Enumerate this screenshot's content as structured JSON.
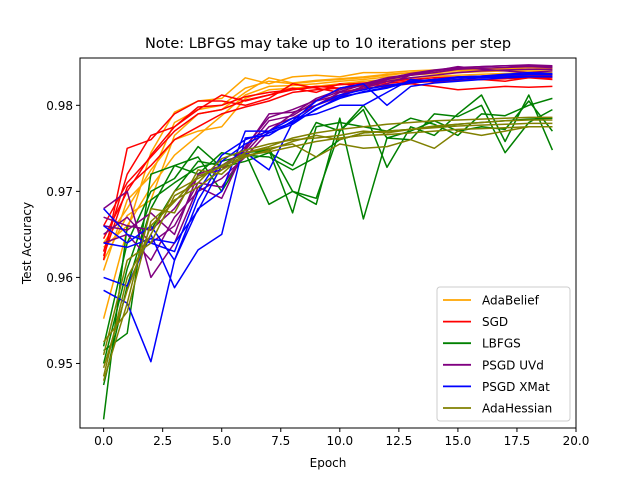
{
  "chart_data": {
    "type": "line",
    "title": "Note: LBFGS may take up to 10 iterations per step",
    "xlabel": "Epoch",
    "ylabel": "Test Accuracy",
    "xlim": [
      -1,
      20
    ],
    "ylim": [
      0.9425,
      0.9855
    ],
    "xticks": [
      0,
      2.5,
      5,
      7.5,
      10,
      12.5,
      15,
      17.5,
      20
    ],
    "xtick_labels": [
      "0.0",
      "2.5",
      "5.0",
      "7.5",
      "10.0",
      "12.5",
      "15.0",
      "17.5",
      "20.0"
    ],
    "yticks": [
      0.95,
      0.96,
      0.97,
      0.98
    ],
    "ytick_labels": [
      "0.95",
      "0.96",
      "0.97",
      "0.98"
    ],
    "grid": false,
    "legend_position": "lower-right",
    "x": [
      0,
      1,
      2,
      3,
      4,
      5,
      6,
      7,
      8,
      9,
      10,
      11,
      12,
      13,
      14,
      15,
      16,
      17,
      18,
      19
    ],
    "series": [
      {
        "name": "AdaBelief",
        "color": "#ffa500",
        "runs": [
          [
            0.9552,
            0.9655,
            0.9745,
            0.9792,
            0.9805,
            0.9808,
            0.9832,
            0.9825,
            0.9833,
            0.9835,
            0.9833,
            0.9838,
            0.9838,
            0.984,
            0.9841,
            0.9842,
            0.9843,
            0.9843,
            0.9844,
            0.9843
          ],
          [
            0.9608,
            0.969,
            0.9718,
            0.978,
            0.9795,
            0.98,
            0.982,
            0.9828,
            0.9825,
            0.9828,
            0.983,
            0.9832,
            0.9835,
            0.9838,
            0.9839,
            0.984,
            0.9841,
            0.9842,
            0.9842,
            0.9842
          ],
          [
            0.9635,
            0.966,
            0.9705,
            0.9742,
            0.9765,
            0.9788,
            0.9812,
            0.9822,
            0.9823,
            0.9825,
            0.9828,
            0.983,
            0.9833,
            0.9835,
            0.9837,
            0.9838,
            0.9839,
            0.984,
            0.984,
            0.984
          ],
          [
            0.962,
            0.9672,
            0.969,
            0.9765,
            0.979,
            0.9795,
            0.9815,
            0.9832,
            0.9826,
            0.9829,
            0.9831,
            0.9833,
            0.9836,
            0.9838,
            0.984,
            0.9841,
            0.9842,
            0.9843,
            0.9845,
            0.9844
          ],
          [
            0.964,
            0.968,
            0.9725,
            0.976,
            0.977,
            0.9775,
            0.9808,
            0.9818,
            0.982,
            0.9822,
            0.9825,
            0.9828,
            0.983,
            0.9832,
            0.9834,
            0.9835,
            0.9836,
            0.9837,
            0.9838,
            0.9838
          ]
        ]
      },
      {
        "name": "SGD",
        "color": "#ff0000",
        "runs": [
          [
            0.962,
            0.975,
            0.976,
            0.979,
            0.9805,
            0.9805,
            0.98,
            0.9808,
            0.9825,
            0.982,
            0.9815,
            0.982,
            0.9822,
            0.9825,
            0.9822,
            0.9818,
            0.982,
            0.9822,
            0.9821,
            0.9822
          ],
          [
            0.963,
            0.972,
            0.9765,
            0.9775,
            0.9795,
            0.9812,
            0.9805,
            0.9812,
            0.982,
            0.9815,
            0.9825,
            0.9822,
            0.9828,
            0.983,
            0.9827,
            0.9829,
            0.983,
            0.9828,
            0.9832,
            0.983
          ],
          [
            0.9645,
            0.97,
            0.9742,
            0.9775,
            0.9798,
            0.98,
            0.981,
            0.9815,
            0.9818,
            0.9822,
            0.982,
            0.9825,
            0.9826,
            0.9828,
            0.983,
            0.9832,
            0.9833,
            0.9834,
            0.9835,
            0.9835
          ],
          [
            0.9625,
            0.9705,
            0.973,
            0.976,
            0.9775,
            0.979,
            0.9798,
            0.9805,
            0.9815,
            0.9818,
            0.982,
            0.9823,
            0.9824,
            0.9826,
            0.9828,
            0.983,
            0.983,
            0.9831,
            0.9832,
            0.9832
          ],
          [
            0.966,
            0.971,
            0.974,
            0.977,
            0.979,
            0.9795,
            0.9806,
            0.9812,
            0.9818,
            0.9821,
            0.9824,
            0.9826,
            0.9828,
            0.983,
            0.9832,
            0.9833,
            0.9834,
            0.9835,
            0.9836,
            0.9836
          ]
        ]
      },
      {
        "name": "LBFGS",
        "color": "#008000",
        "runs": [
          [
            0.9435,
            0.966,
            0.9655,
            0.97,
            0.9735,
            0.973,
            0.9745,
            0.9685,
            0.97,
            0.9685,
            0.9785,
            0.9668,
            0.9762,
            0.976,
            0.979,
            0.9787,
            0.98,
            0.9745,
            0.978,
            0.9795
          ],
          [
            0.9515,
            0.9535,
            0.972,
            0.973,
            0.974,
            0.97,
            0.9745,
            0.9748,
            0.9675,
            0.9775,
            0.978,
            0.9775,
            0.977,
            0.9785,
            0.9778,
            0.9765,
            0.979,
            0.9788,
            0.98,
            0.9808
          ],
          [
            0.952,
            0.964,
            0.97,
            0.9715,
            0.9752,
            0.9728,
            0.9735,
            0.9745,
            0.973,
            0.978,
            0.977,
            0.9795,
            0.9728,
            0.9775,
            0.9765,
            0.979,
            0.9812,
            0.9758,
            0.9812,
            0.9748
          ],
          [
            0.9475,
            0.959,
            0.968,
            0.973,
            0.972,
            0.9745,
            0.974,
            0.975,
            0.97,
            0.9692,
            0.977,
            0.98,
            0.9762,
            0.977,
            0.9782,
            0.977,
            0.9775,
            0.9772,
            0.9805,
            0.977
          ],
          [
            0.95,
            0.961,
            0.969,
            0.971,
            0.9728,
            0.9735,
            0.9742,
            0.974,
            0.9725,
            0.974,
            0.976,
            0.9768,
            0.977,
            0.9772,
            0.9775,
            0.9778,
            0.978,
            0.9782,
            0.9784,
            0.9785
          ]
        ]
      },
      {
        "name": "PSGD UVd",
        "color": "#800080",
        "runs": [
          [
            0.968,
            0.97,
            0.96,
            0.964,
            0.9705,
            0.9692,
            0.975,
            0.979,
            0.9792,
            0.98,
            0.9815,
            0.9818,
            0.9825,
            0.9835,
            0.984,
            0.9845,
            0.9842,
            0.984,
            0.9838,
            0.984
          ],
          [
            0.966,
            0.9655,
            0.9675,
            0.965,
            0.972,
            0.973,
            0.9748,
            0.9782,
            0.9788,
            0.9805,
            0.9812,
            0.9822,
            0.983,
            0.9835,
            0.9838,
            0.9842,
            0.9843,
            0.9844,
            0.9845,
            0.9844
          ],
          [
            0.965,
            0.967,
            0.964,
            0.966,
            0.971,
            0.9705,
            0.9745,
            0.9775,
            0.9785,
            0.98,
            0.981,
            0.982,
            0.9828,
            0.9832,
            0.9835,
            0.9838,
            0.984,
            0.9841,
            0.9842,
            0.9842
          ],
          [
            0.964,
            0.965,
            0.962,
            0.967,
            0.97,
            0.9715,
            0.974,
            0.977,
            0.979,
            0.9808,
            0.9818,
            0.9825,
            0.9832,
            0.9836,
            0.984,
            0.9843,
            0.9845,
            0.9846,
            0.9847,
            0.9846
          ],
          [
            0.967,
            0.966,
            0.9655,
            0.968,
            0.9718,
            0.9725,
            0.9752,
            0.9786,
            0.9795,
            0.9806,
            0.9816,
            0.9824,
            0.9831,
            0.9837,
            0.9841,
            0.9844,
            0.9845,
            0.9846,
            0.9846,
            0.9845
          ]
        ]
      },
      {
        "name": "PSGD XMat",
        "color": "#0000ff",
        "runs": [
          [
            0.9585,
            0.957,
            0.9502,
            0.962,
            0.968,
            0.97,
            0.977,
            0.977,
            0.9785,
            0.979,
            0.98,
            0.98,
            0.9815,
            0.983,
            0.9828,
            0.983,
            0.9832,
            0.9833,
            0.9834,
            0.9834
          ],
          [
            0.96,
            0.959,
            0.965,
            0.9588,
            0.9632,
            0.965,
            0.9762,
            0.9765,
            0.9782,
            0.9805,
            0.982,
            0.9825,
            0.98,
            0.9822,
            0.9826,
            0.9828,
            0.983,
            0.9832,
            0.9833,
            0.9833
          ],
          [
            0.964,
            0.9635,
            0.9645,
            0.964,
            0.9678,
            0.973,
            0.9745,
            0.9725,
            0.978,
            0.9795,
            0.981,
            0.9815,
            0.982,
            0.9828,
            0.983,
            0.9832,
            0.9834,
            0.9835,
            0.9836,
            0.9836
          ],
          [
            0.968,
            0.965,
            0.964,
            0.963,
            0.97,
            0.9742,
            0.976,
            0.977,
            0.978,
            0.98,
            0.9812,
            0.9818,
            0.9823,
            0.9827,
            0.983,
            0.9833,
            0.9834,
            0.9836,
            0.9838,
            0.9837
          ],
          [
            0.966,
            0.964,
            0.966,
            0.962,
            0.969,
            0.9735,
            0.9755,
            0.9768,
            0.9778,
            0.9796,
            0.9808,
            0.9816,
            0.9821,
            0.9826,
            0.9829,
            0.9832,
            0.9833,
            0.9835,
            0.9836,
            0.9836
          ]
        ]
      },
      {
        "name": "AdaHessian",
        "color": "#808000",
        "runs": [
          [
            0.948,
            0.957,
            0.968,
            0.9675,
            0.9725,
            0.972,
            0.9745,
            0.975,
            0.9755,
            0.974,
            0.9755,
            0.975,
            0.9752,
            0.976,
            0.975,
            0.977,
            0.9765,
            0.977,
            0.9775,
            0.9775
          ],
          [
            0.9525,
            0.956,
            0.9665,
            0.969,
            0.9705,
            0.9725,
            0.974,
            0.9748,
            0.9758,
            0.9765,
            0.976,
            0.9768,
            0.977,
            0.9772,
            0.9774,
            0.9776,
            0.9777,
            0.9778,
            0.9779,
            0.9779
          ],
          [
            0.9485,
            0.96,
            0.965,
            0.97,
            0.9715,
            0.973,
            0.9745,
            0.9752,
            0.9762,
            0.9768,
            0.9772,
            0.9775,
            0.9778,
            0.978,
            0.9782,
            0.9783,
            0.9784,
            0.9785,
            0.9786,
            0.9786
          ],
          [
            0.951,
            0.962,
            0.964,
            0.9695,
            0.971,
            0.9738,
            0.9748,
            0.9755,
            0.976,
            0.9762,
            0.9765,
            0.977,
            0.9768,
            0.9772,
            0.9776,
            0.9778,
            0.978,
            0.9782,
            0.9783,
            0.9783
          ],
          [
            0.9495,
            0.9585,
            0.966,
            0.9688,
            0.9718,
            0.9728,
            0.9742,
            0.9746,
            0.9752,
            0.9758,
            0.9762,
            0.9765,
            0.9766,
            0.9768,
            0.977,
            0.9772,
            0.9773,
            0.9774,
            0.9775,
            0.9775
          ]
        ]
      }
    ]
  }
}
